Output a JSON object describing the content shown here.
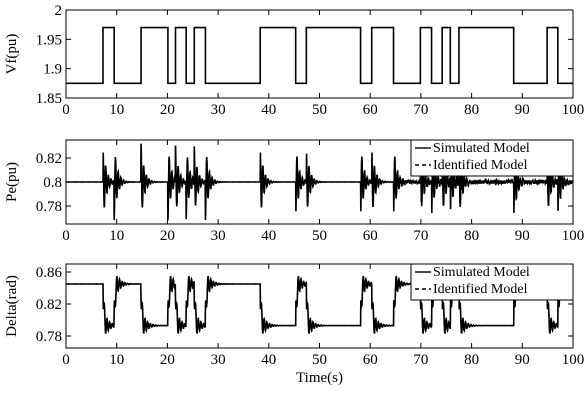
{
  "figure": {
    "panel_count": 3
  },
  "chart_data": [
    {
      "type": "line",
      "ylabel": "Vf(pu)",
      "xlabel": "",
      "xlim": [
        0,
        100
      ],
      "ylim": [
        1.85,
        2.0
      ],
      "xticks": [
        0,
        10,
        20,
        30,
        40,
        50,
        60,
        70,
        80,
        90,
        100
      ],
      "yticks": [
        1.85,
        1.9,
        1.95,
        2.0
      ],
      "ytick_labels": [
        "1.85",
        "1.9",
        "1.95",
        "2"
      ],
      "grid": false,
      "legend": [],
      "series": [
        {
          "style": "solid",
          "color": "#000000",
          "x": [
            0,
            7.3,
            7.3,
            9.5,
            9.5,
            14.8,
            14.8,
            20.1,
            20.1,
            21.6,
            21.6,
            23.7,
            23.7,
            25.3,
            25.3,
            27.5,
            27.5,
            38.3,
            38.3,
            45.3,
            45.3,
            47.4,
            47.4,
            58.1,
            58.1,
            60.3,
            60.3,
            64.6,
            64.6,
            69.9,
            69.9,
            72.1,
            72.1,
            74.2,
            74.2,
            75.8,
            75.8,
            77.5,
            77.5,
            88.3,
            88.3,
            94.9,
            94.9,
            97.0,
            97.0,
            100
          ],
          "y": [
            1.875,
            1.875,
            1.97,
            1.97,
            1.875,
            1.875,
            1.97,
            1.97,
            1.875,
            1.875,
            1.97,
            1.97,
            1.875,
            1.875,
            1.97,
            1.97,
            1.875,
            1.875,
            1.97,
            1.97,
            1.875,
            1.875,
            1.97,
            1.97,
            1.875,
            1.875,
            1.97,
            1.97,
            1.875,
            1.875,
            1.97,
            1.97,
            1.875,
            1.875,
            1.97,
            1.97,
            1.875,
            1.875,
            1.97,
            1.97,
            1.875,
            1.875,
            1.97,
            1.97,
            1.875,
            1.875
          ]
        }
      ]
    },
    {
      "type": "line",
      "ylabel": "Pe(pu)",
      "xlabel": "",
      "xlim": [
        0,
        100
      ],
      "ylim": [
        0.765,
        0.835
      ],
      "xticks": [
        0,
        10,
        20,
        30,
        40,
        50,
        60,
        70,
        80,
        90,
        100
      ],
      "yticks": [
        0.78,
        0.8,
        0.82
      ],
      "ytick_labels": [
        "0.78",
        "0.8",
        "0.82"
      ],
      "grid": false,
      "legend_position": "top-right",
      "legend": [
        {
          "label": "Simulated Model",
          "style": "solid"
        },
        {
          "label": "Identified Model",
          "style": "dashed"
        }
      ],
      "baseline": 0.8,
      "events": [
        {
          "t": 7.3,
          "dir": 1
        },
        {
          "t": 9.5,
          "dir": -1
        },
        {
          "t": 14.8,
          "dir": 1
        },
        {
          "t": 20.1,
          "dir": -1
        },
        {
          "t": 21.6,
          "dir": 1
        },
        {
          "t": 23.7,
          "dir": -1
        },
        {
          "t": 25.3,
          "dir": 1
        },
        {
          "t": 27.5,
          "dir": -1
        },
        {
          "t": 38.3,
          "dir": 1
        },
        {
          "t": 45.3,
          "dir": -1
        },
        {
          "t": 47.4,
          "dir": 1
        },
        {
          "t": 58.1,
          "dir": -1
        },
        {
          "t": 60.3,
          "dir": 1
        },
        {
          "t": 64.6,
          "dir": -1
        },
        {
          "t": 69.9,
          "dir": 1
        },
        {
          "t": 72.1,
          "dir": -1
        },
        {
          "t": 74.2,
          "dir": 1
        },
        {
          "t": 75.8,
          "dir": -1
        },
        {
          "t": 77.5,
          "dir": 1
        },
        {
          "t": 88.3,
          "dir": -1
        },
        {
          "t": 94.9,
          "dir": 1
        },
        {
          "t": 97.0,
          "dir": -1
        }
      ],
      "spike_amplitude": 0.032,
      "noise_after_t": 66,
      "noise_amplitude": 0.003
    },
    {
      "type": "line",
      "ylabel": "Delta(rad)",
      "xlabel": "Time(s)",
      "xlim": [
        0,
        100
      ],
      "ylim": [
        0.765,
        0.87
      ],
      "xticks": [
        0,
        10,
        20,
        30,
        40,
        50,
        60,
        70,
        80,
        90,
        100
      ],
      "yticks": [
        0.78,
        0.82,
        0.86
      ],
      "ytick_labels": [
        "0.78",
        "0.82",
        "0.86"
      ],
      "grid": false,
      "legend_position": "top-right",
      "legend": [
        {
          "label": "Simulated Model",
          "style": "solid"
        },
        {
          "label": "Identified Model",
          "style": "dashed"
        }
      ],
      "initial_level": 0.845,
      "high_level": 0.845,
      "low_level": 0.793,
      "events": [
        {
          "t": 7.3,
          "dir": -1
        },
        {
          "t": 9.5,
          "dir": 1
        },
        {
          "t": 14.8,
          "dir": -1
        },
        {
          "t": 20.1,
          "dir": 1
        },
        {
          "t": 21.6,
          "dir": -1
        },
        {
          "t": 23.7,
          "dir": 1
        },
        {
          "t": 25.3,
          "dir": -1
        },
        {
          "t": 27.5,
          "dir": 1
        },
        {
          "t": 38.3,
          "dir": -1
        },
        {
          "t": 45.3,
          "dir": 1
        },
        {
          "t": 47.4,
          "dir": -1
        },
        {
          "t": 58.1,
          "dir": 1
        },
        {
          "t": 60.3,
          "dir": -1
        },
        {
          "t": 64.6,
          "dir": 1
        },
        {
          "t": 69.9,
          "dir": -1
        },
        {
          "t": 72.1,
          "dir": 1
        },
        {
          "t": 74.2,
          "dir": -1
        },
        {
          "t": 75.8,
          "dir": 1
        },
        {
          "t": 77.5,
          "dir": -1
        },
        {
          "t": 88.3,
          "dir": 1
        },
        {
          "t": 94.9,
          "dir": -1
        },
        {
          "t": 97.0,
          "dir": 1
        }
      ]
    }
  ]
}
